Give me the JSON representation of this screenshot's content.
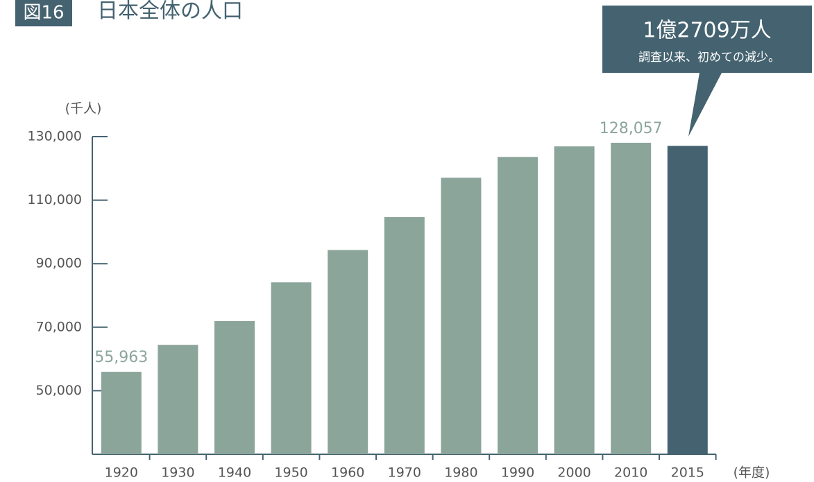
{
  "chart_data": {
    "type": "bar",
    "badge": "図16",
    "title": "日本全体の人口",
    "y_label": "(千人)",
    "x_label": "(年度)",
    "annotation": {
      "headline": "1億2709万人",
      "text": "調査以来、初めての減少。"
    },
    "categories": [
      "1920",
      "1930",
      "1940",
      "1950",
      "1960",
      "1970",
      "1980",
      "1990",
      "2000",
      "2010",
      "2015"
    ],
    "values": [
      55963,
      64450,
      71933,
      84115,
      94302,
      104665,
      117060,
      123611,
      126926,
      128057,
      127095
    ],
    "value_labels": [
      "55,963",
      null,
      null,
      null,
      null,
      null,
      null,
      null,
      null,
      "128,057",
      null
    ],
    "colors": [
      "#8ca59b",
      "#8ca59b",
      "#8ca59b",
      "#8ca59b",
      "#8ca59b",
      "#8ca59b",
      "#8ca59b",
      "#8ca59b",
      "#8ca59b",
      "#8ca59b",
      "#44626f"
    ],
    "ylim": [
      30000,
      130000
    ],
    "yticks": [
      {
        "value": 50000,
        "label": "50,000"
      },
      {
        "value": 70000,
        "label": "70,000"
      },
      {
        "value": 90000,
        "label": "90,000"
      },
      {
        "value": 110000,
        "label": "110,000"
      },
      {
        "value": 130000,
        "label": "130,000"
      }
    ]
  }
}
